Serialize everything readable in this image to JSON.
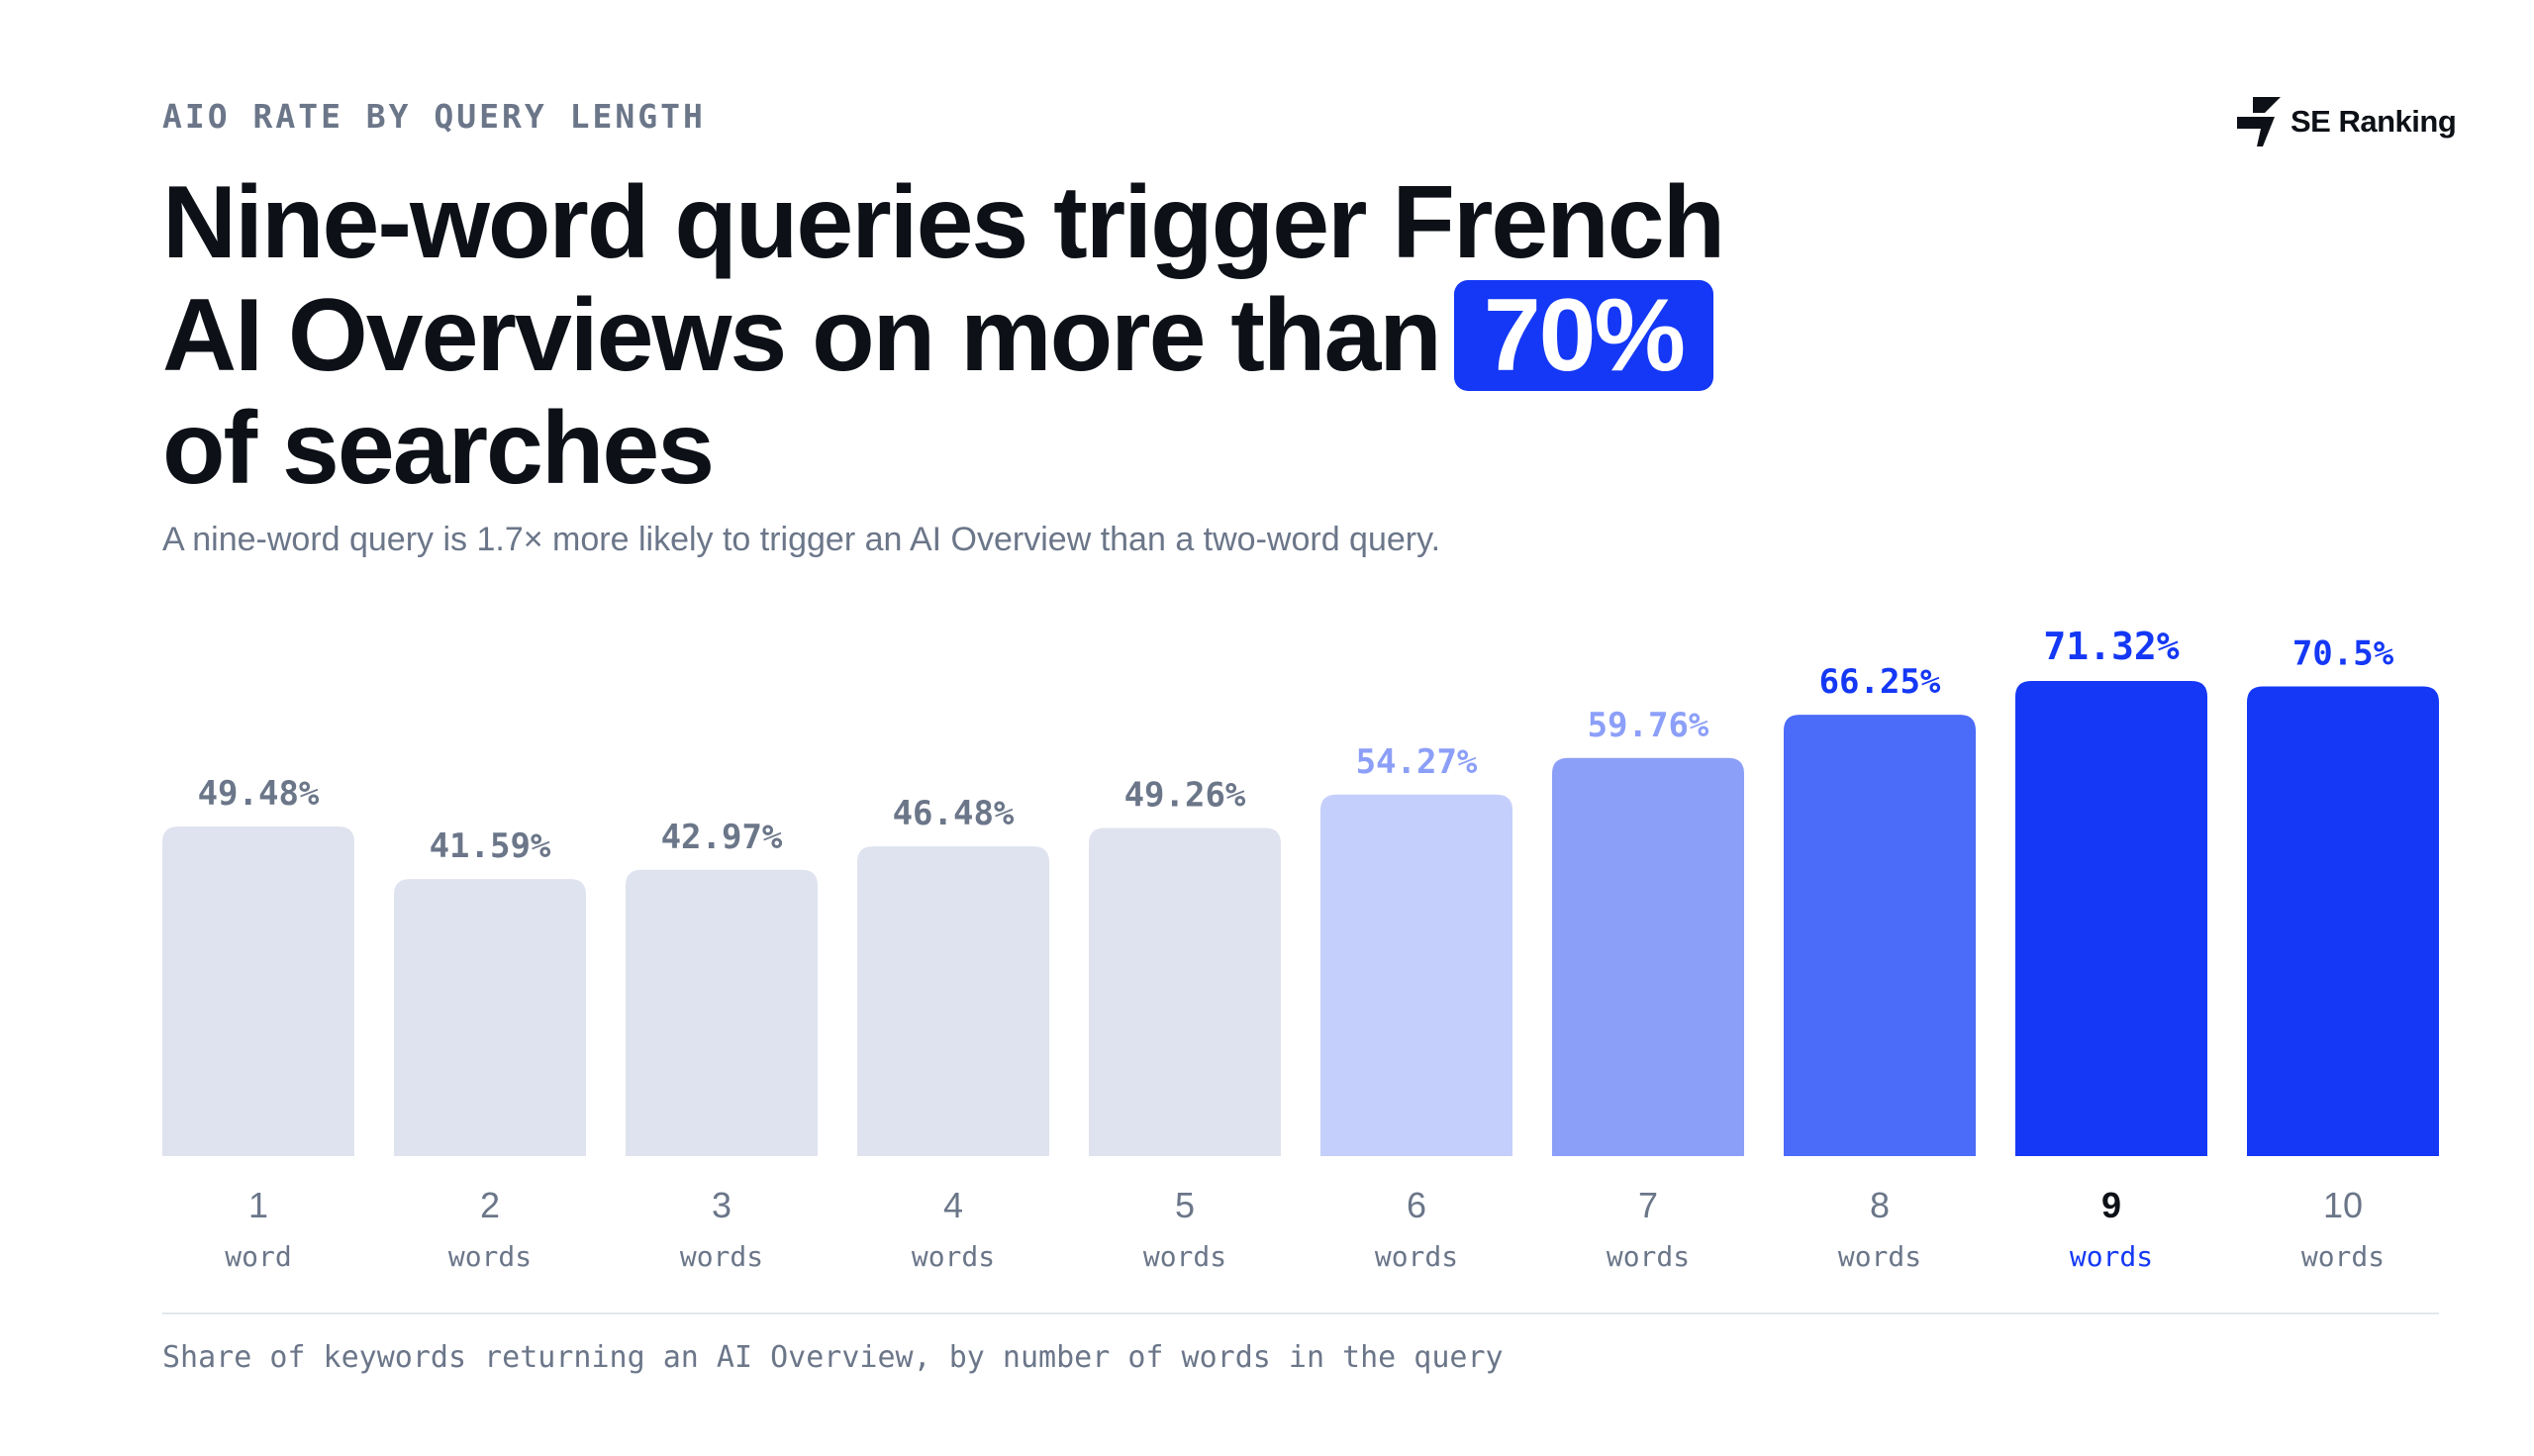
{
  "header": {
    "eyebrow": "AIO RATE BY QUERY LENGTH",
    "brand": "SE Ranking",
    "title_line1": "Nine-word queries trigger French",
    "title_line2": "AI Overviews on more than",
    "title_highlight": "70%",
    "title_line3": "of searches",
    "subtitle": "A nine-word query is 1.7× more likely to trigger an AI Overview than a two-word query."
  },
  "footer": {
    "note": "Share of keywords returning an AI Overview, by number of words in the query"
  },
  "colors": {
    "accent": "#1438f5",
    "muted_text": "#6b7689",
    "dark_text": "#0d1117"
  },
  "chart_data": {
    "type": "bar",
    "categories": [
      "1",
      "2",
      "3",
      "4",
      "5",
      "6",
      "7",
      "8",
      "9",
      "10"
    ],
    "sublabels": [
      "word",
      "words",
      "words",
      "words",
      "words",
      "words",
      "words",
      "words",
      "words",
      "words"
    ],
    "values": [
      49.48,
      41.59,
      42.97,
      46.48,
      49.26,
      54.27,
      59.76,
      66.25,
      71.32,
      70.5
    ],
    "value_labels": [
      "49.48%",
      "41.59%",
      "42.97%",
      "46.48%",
      "49.26%",
      "54.27%",
      "59.76%",
      "66.25%",
      "71.32%",
      "70.5%"
    ],
    "bar_colors": [
      "#dfe3ef",
      "#dfe3ef",
      "#dfe3ef",
      "#dfe3ef",
      "#dfe3ef",
      "#c5cffb",
      "#8c9ff8",
      "#4b6bf9",
      "#1438f5",
      "#1438f5"
    ],
    "label_colors": [
      "#6b7689",
      "#6b7689",
      "#6b7689",
      "#6b7689",
      "#6b7689",
      "#8c9ff8",
      "#8c9ff8",
      "#1438f5",
      "#1438f5",
      "#1438f5"
    ],
    "highlight_index": 8,
    "ylim": [
      0,
      71.32
    ],
    "title": "",
    "xlabel": "",
    "ylabel": "",
    "grid": false
  }
}
